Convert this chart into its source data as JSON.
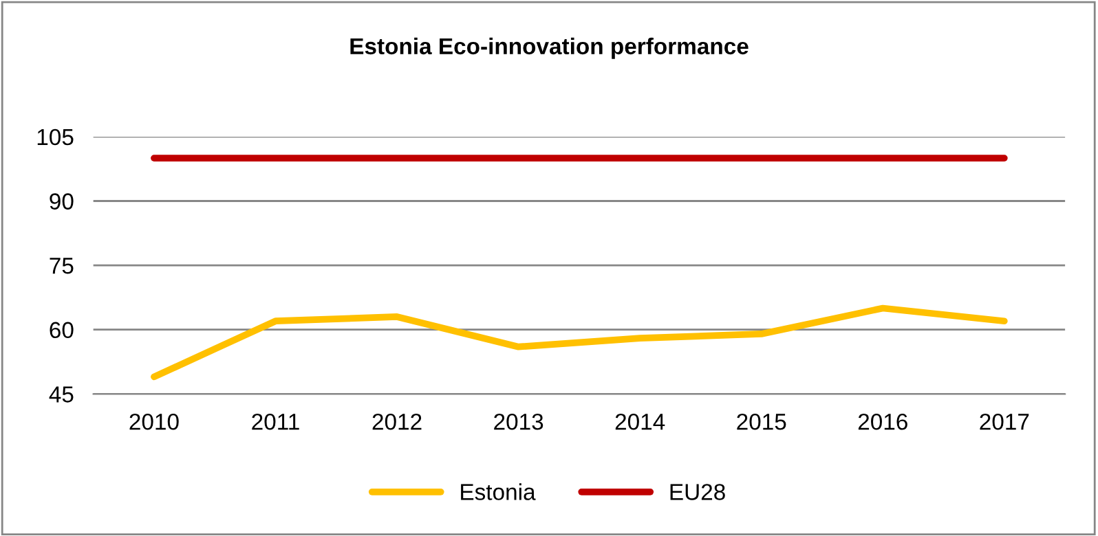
{
  "chart_data": {
    "type": "line",
    "title": "Estonia Eco-innovation performance",
    "categories": [
      "2010",
      "2011",
      "2012",
      "2013",
      "2014",
      "2015",
      "2016",
      "2017"
    ],
    "series": [
      {
        "name": "Estonia",
        "color": "#ffc000",
        "values": [
          49,
          62,
          63,
          56,
          58,
          59,
          65,
          62
        ]
      },
      {
        "name": "EU28",
        "color": "#c00000",
        "values": [
          100,
          100,
          100,
          100,
          100,
          100,
          100,
          100
        ]
      }
    ],
    "ylim": [
      45,
      105
    ],
    "yticks": [
      45,
      60,
      75,
      90,
      105
    ],
    "grid": "y",
    "legend": "bottom",
    "marker": "none",
    "line_style": "solid"
  }
}
